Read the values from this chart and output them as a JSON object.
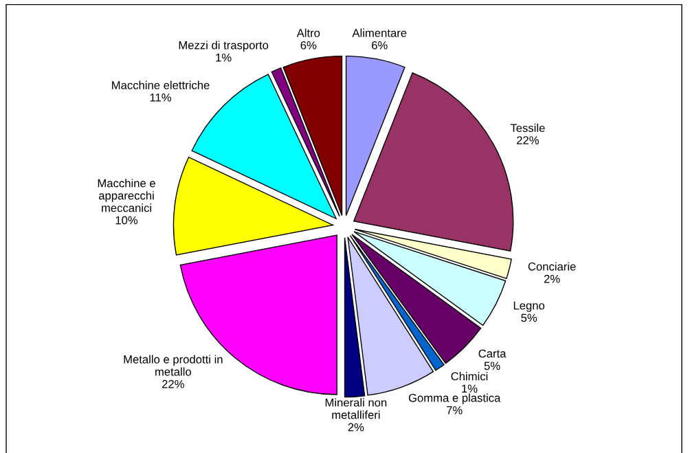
{
  "chart_data": {
    "type": "pie",
    "categories": [
      "Alimentare",
      "Tessile",
      "Conciarie",
      "Legno",
      "Carta",
      "Chimici",
      "Gomma e plastica",
      "Minerali non\nmetalliferi",
      "Metallo e prodotti in\nmetallo",
      "Macchine e\napparecchi\nmeccanici",
      "Macchine elettriche",
      "Mezzi di trasporto",
      "Altro"
    ],
    "values": [
      6,
      22,
      2,
      5,
      5,
      1,
      7,
      2,
      22,
      10,
      11,
      1,
      6
    ],
    "value_labels": [
      "6%",
      "22%",
      "2%",
      "5%",
      "5%",
      "1%",
      "7%",
      "2%",
      "22%",
      "10%",
      "11%",
      "1%",
      "6%"
    ],
    "colors": [
      "#9999ff",
      "#993366",
      "#ffffcc",
      "#ccffff",
      "#660066",
      "#0066cc",
      "#ccccff",
      "#000080",
      "#ff00ff",
      "#ffff00",
      "#00ffff",
      "#800080",
      "#800000"
    ],
    "legend": false
  }
}
